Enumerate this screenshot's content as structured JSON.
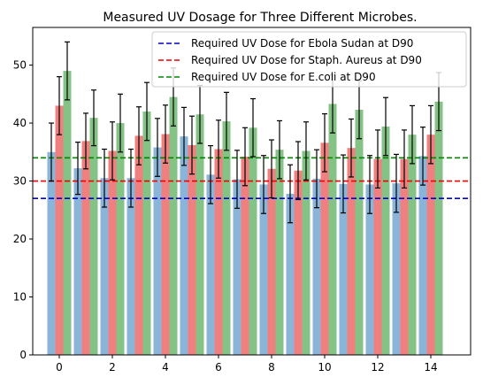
{
  "chart_data": {
    "type": "bar",
    "title": "Measured UV Dosage for Three Different Microbes.",
    "xlabel": "",
    "ylabel": "",
    "xlim": [
      -1,
      15.5
    ],
    "ylim": [
      0,
      56.5
    ],
    "xticks": [
      0,
      2,
      4,
      6,
      8,
      10,
      12,
      14
    ],
    "yticks": [
      0,
      10,
      20,
      30,
      40,
      50
    ],
    "grid": false,
    "legend_position": "top-right",
    "x": [
      0,
      1,
      2,
      3,
      4,
      5,
      6,
      7,
      8,
      9,
      10,
      11,
      12,
      13,
      14
    ],
    "series": [
      {
        "color": "#8ab4d8",
        "values": [
          35.0,
          32.2,
          30.5,
          30.5,
          35.8,
          37.7,
          31.1,
          30.3,
          29.4,
          27.8,
          30.4,
          29.5,
          29.4,
          29.6,
          34.3
        ],
        "errors": [
          5.0,
          4.5,
          5.0,
          5.0,
          5.0,
          5.0,
          5.0,
          5.0,
          5.0,
          5.0,
          5.0,
          5.0,
          5.0,
          5.0,
          5.0
        ]
      },
      {
        "color": "#f08080",
        "values": [
          43.0,
          36.9,
          35.2,
          37.8,
          38.1,
          36.2,
          35.5,
          34.2,
          32.1,
          31.8,
          36.6,
          35.7,
          33.8,
          33.8,
          38.0
        ],
        "errors": [
          5.0,
          4.8,
          5.0,
          5.0,
          5.0,
          5.0,
          5.0,
          5.0,
          5.0,
          5.0,
          5.0,
          5.0,
          5.0,
          5.0,
          5.0
        ]
      },
      {
        "color": "#85c285",
        "values": [
          49.0,
          40.9,
          40.0,
          42.0,
          44.5,
          41.5,
          40.3,
          39.2,
          35.4,
          35.2,
          43.3,
          42.3,
          39.4,
          38.0,
          43.7
        ],
        "errors": [
          5.0,
          4.8,
          5.0,
          5.0,
          5.0,
          5.0,
          5.0,
          5.0,
          5.0,
          5.0,
          5.0,
          5.0,
          5.0,
          5.0,
          5.0
        ]
      }
    ],
    "reference_lines": [
      {
        "name": "Required UV Dose for Ebola Sudan at D90",
        "y": 27,
        "color": "#0000cc"
      },
      {
        "name": "Required UV Dose for Staph. Aureus at D90",
        "y": 30,
        "color": "#ee0000"
      },
      {
        "name": "Required UV Dose for E.coli at D90",
        "y": 34,
        "color": "#008800"
      }
    ]
  }
}
